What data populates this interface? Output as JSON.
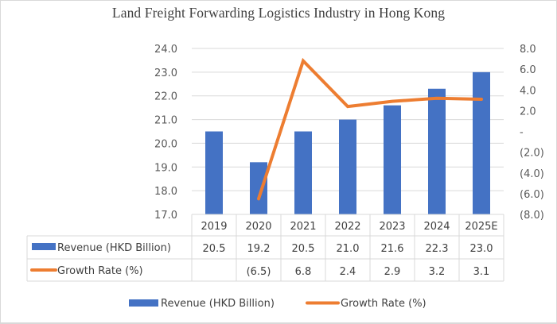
{
  "chart_data": {
    "type": "bar",
    "title": "Land Freight Forwarding Logistics Industry  in Hong Kong",
    "categories": [
      "2019",
      "2020",
      "2021",
      "2022",
      "2023",
      "2024",
      "2025E"
    ],
    "series": [
      {
        "name": "Revenue (HKD Billion)",
        "type": "bar",
        "axis": "left",
        "color": "#4472c4",
        "values": [
          20.5,
          19.2,
          20.5,
          21.0,
          21.6,
          22.3,
          23.0
        ],
        "labels": [
          "20.5",
          "19.2",
          "20.5",
          "21.0",
          "21.6",
          "22.3",
          "23.0"
        ]
      },
      {
        "name": "Growth Rate (%)",
        "type": "line",
        "axis": "right",
        "color": "#ed7d31",
        "values": [
          null,
          -6.5,
          6.8,
          2.4,
          2.9,
          3.2,
          3.1
        ],
        "labels": [
          "",
          "(6.5)",
          "6.8",
          "2.4",
          "2.9",
          "3.2",
          "3.1"
        ]
      }
    ],
    "left_axis": {
      "range": [
        17.0,
        24.0
      ],
      "ticks": [
        24.0,
        23.0,
        22.0,
        21.0,
        20.0,
        19.0,
        18.0,
        17.0
      ],
      "tick_labels": [
        "24.0",
        "23.0",
        "22.0",
        "21.0",
        "20.0",
        "19.0",
        "18.0",
        "17.0"
      ]
    },
    "right_axis": {
      "range": [
        -8.0,
        8.0
      ],
      "ticks": [
        8,
        6,
        4,
        2,
        0,
        -2,
        -4,
        -6,
        -8
      ],
      "tick_labels": [
        "8.0",
        "6.0",
        "4.0",
        "2.0",
        "-",
        "(2.0)",
        "(4.0)",
        "(6.0)",
        "(8.0)"
      ]
    },
    "grid": true,
    "data_table": true,
    "legend": {
      "position": "bottom",
      "entries": [
        "Revenue (HKD Billion)",
        "Growth Rate (%)"
      ]
    }
  }
}
